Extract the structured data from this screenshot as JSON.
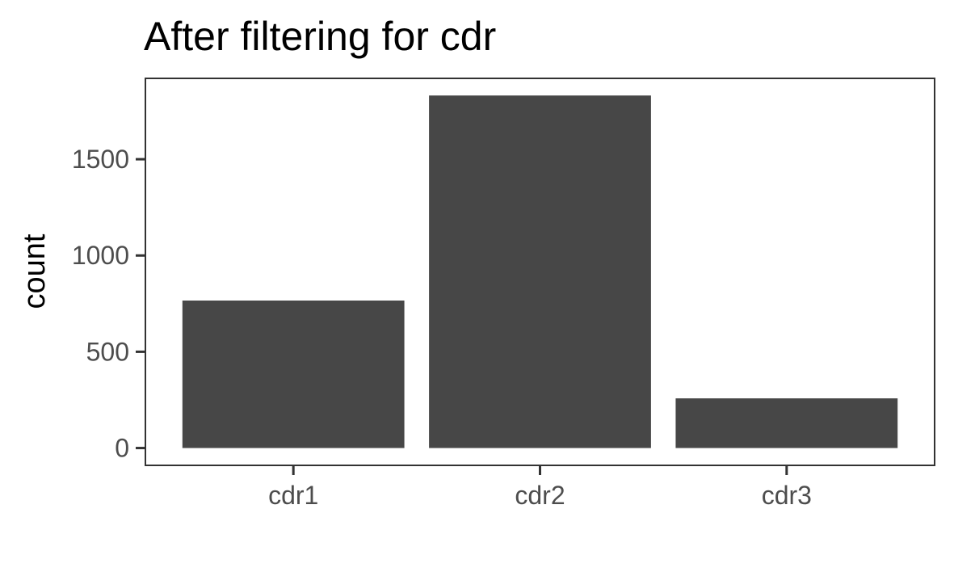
{
  "chart_data": {
    "type": "bar",
    "title": "After filtering for cdr",
    "xlabel": "",
    "ylabel": "count",
    "categories": [
      "cdr1",
      "cdr2",
      "cdr3"
    ],
    "values": [
      766,
      1831,
      258
    ],
    "ylim": [
      -90,
      1920
    ],
    "yticks": [
      0,
      500,
      1000,
      1500
    ],
    "grid": false,
    "legend": "none",
    "colors": {
      "bar": "#474747",
      "axis": "#333333",
      "tick_text": "#4d4d4d"
    }
  }
}
